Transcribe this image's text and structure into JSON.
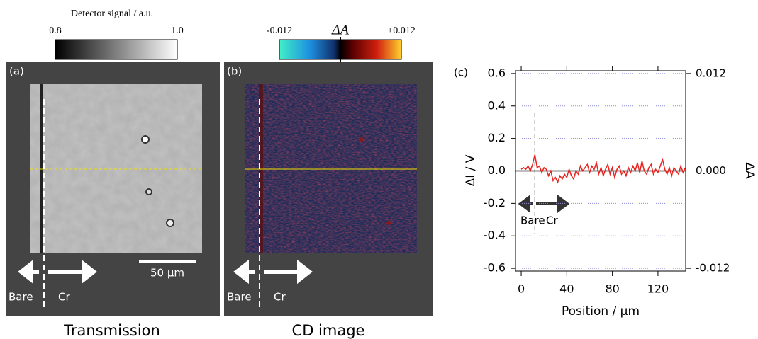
{
  "panel_a": {
    "colorbar_title": "Detector signal / a.u.",
    "colorbar_min": "0.8",
    "colorbar_max": "1.0",
    "label": "(a)",
    "scale_bar": "50 µm",
    "left_label": "Bare",
    "right_label": "Cr",
    "caption": "Transmission"
  },
  "panel_b": {
    "colorbar_title": "ΔA",
    "colorbar_min": "-0.012",
    "colorbar_max": "+0.012",
    "label": "(b)",
    "left_label": "Bare",
    "right_label": "Cr",
    "caption": "CD image"
  },
  "chart_data": {
    "type": "line",
    "panel_label": "(c)",
    "x_label": "Position / µm",
    "y_label": "ΔI / V",
    "y2_label": "ΔA",
    "annotations": [
      "Bare",
      "Cr"
    ],
    "marker_x": 12,
    "x": [
      0,
      2,
      4,
      6,
      8,
      10,
      12,
      14,
      16,
      18,
      20,
      22,
      24,
      26,
      28,
      30,
      32,
      34,
      36,
      38,
      40,
      42,
      44,
      46,
      48,
      50,
      52,
      54,
      56,
      58,
      60,
      62,
      64,
      66,
      68,
      70,
      72,
      74,
      76,
      78,
      80,
      82,
      84,
      86,
      88,
      90,
      92,
      94,
      96,
      98,
      100,
      102,
      104,
      106,
      108,
      110,
      112,
      114,
      116,
      118,
      120,
      122,
      124,
      126,
      128,
      130,
      132,
      134,
      136,
      138,
      140,
      142,
      144
    ],
    "series": [
      {
        "color": "#e8231f",
        "values": [
          0.01,
          0.02,
          0.01,
          0.03,
          0.0,
          0.04,
          0.1,
          0.02,
          0.03,
          -0.01,
          0.02,
          0.01,
          -0.03,
          0.0,
          -0.06,
          -0.04,
          -0.07,
          -0.03,
          -0.05,
          -0.02,
          -0.04,
          0.01,
          -0.03,
          -0.05,
          0.0,
          -0.02,
          0.03,
          0.0,
          0.02,
          0.04,
          -0.01,
          0.03,
          0.01,
          0.05,
          -0.02,
          0.02,
          -0.03,
          0.01,
          0.04,
          -0.02,
          0.02,
          -0.04,
          0.01,
          0.03,
          -0.02,
          0.0,
          -0.03,
          0.02,
          -0.01,
          0.03,
          0.0,
          0.05,
          -0.01,
          0.06,
          0.0,
          -0.02,
          0.02,
          0.04,
          -0.02,
          0.01,
          -0.01,
          0.03,
          0.07,
          0.01,
          -0.02,
          0.02,
          -0.03,
          0.02,
          0.0,
          -0.02,
          0.03,
          -0.01,
          0.02
        ]
      }
    ],
    "xlim": [
      -5,
      144.3
    ],
    "xticks": [
      0,
      40,
      80,
      120
    ],
    "ylim": [
      -0.617,
      0.617
    ],
    "yticks": [
      0.6,
      0.4,
      0.2,
      {
        "value": 0,
        "label": "0.0"
      },
      -0.2,
      -0.4,
      -0.6
    ],
    "y2lim": [
      -0.01234,
      0.01234
    ],
    "y2ticks": [
      0.012,
      {
        "value": 0,
        "label": "0.000"
      },
      -0.012
    ],
    "grid": true
  }
}
